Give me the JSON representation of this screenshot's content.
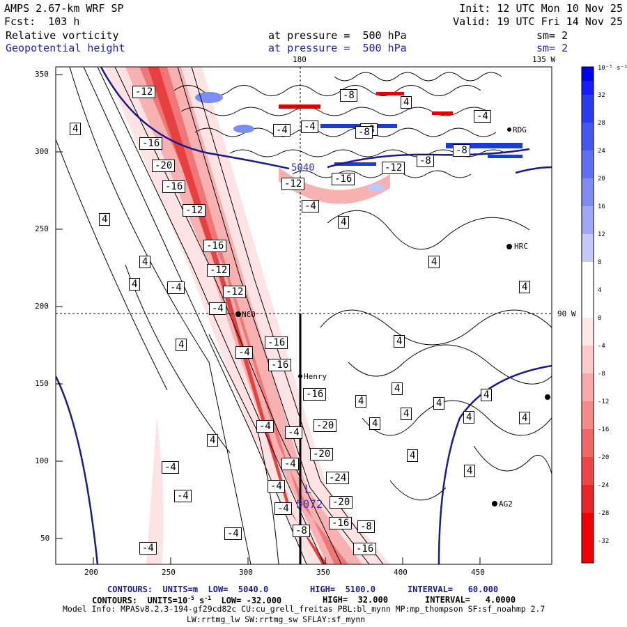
{
  "header": {
    "model": "AMPS 2.67-km WRF SP",
    "forecast": "Fcst:  103 h",
    "field1": "Relative vorticity",
    "field2": "Geopotential height",
    "pressure1": "at pressure =  500 hPa",
    "pressure2": "at pressure =  500 hPa",
    "init": "Init: 12 UTC Mon 10 Nov 25",
    "valid": "Valid: 19 UTC Fri 14 Nov 25",
    "sm1": "sm= 2",
    "sm2": "sm= 2"
  },
  "map_labels": {
    "lon_180": "180",
    "lon_135w": "135 W",
    "lon_90w": "90 W"
  },
  "axes": {
    "x_ticks": [
      "200",
      "250",
      "300",
      "350",
      "400",
      "450"
    ],
    "y_ticks": [
      "50",
      "100",
      "150",
      "200",
      "250",
      "300",
      "350"
    ]
  },
  "stations": [
    {
      "name": "HRC"
    },
    {
      "name": "NCO"
    },
    {
      "name": "Henry"
    },
    {
      "name": "AG2"
    },
    {
      "name": "RDG"
    }
  ],
  "low_center": {
    "letter": "L",
    "value": "5072"
  },
  "height_label": "5040",
  "vort_labels": [
    "-12",
    "-16",
    "-20",
    "-16",
    "-12",
    "-16",
    "-12",
    "-12",
    "-16",
    "-16",
    "-16",
    "-20",
    "-20",
    "-24",
    "-20",
    "-16",
    "-8",
    "-16",
    "-12",
    "-8",
    "-4",
    "-8",
    "-4",
    "-8",
    "-4",
    "-12",
    "-16",
    "-4",
    "-4",
    "-4",
    "-4",
    "-4",
    "-4",
    "-4",
    "-4",
    "-4",
    "-4",
    "-4",
    "-4",
    "-8",
    "-8",
    "-8",
    "-4",
    "4",
    "4",
    "4",
    "4",
    "4",
    "4",
    "4",
    "4",
    "4",
    "4",
    "4",
    "4",
    "4",
    "4",
    "4",
    "4",
    "4",
    "4",
    "4",
    "4",
    "4"
  ],
  "colorbar": {
    "units": "10⁻⁵ s⁻¹",
    "labels": [
      "32",
      "28",
      "24",
      "20",
      "16",
      "12",
      "8",
      "4",
      "0",
      "-4",
      "-8",
      "-12",
      "-16",
      "-20",
      "-24",
      "-28",
      "-32"
    ]
  },
  "footer": {
    "line1_a": "CONTOURS:  UNITS=m  LOW=  5040.0",
    "line1_b": "HIGH=  5100.0",
    "line1_c": "INTERVAL=   60.000",
    "line2_a": "CONTOURS:  UNITS=10",
    "line2_exp": "-5",
    "line2_b": " s",
    "line2_exp2": "-1",
    "line2_c": "  LOW= -32.000",
    "line2_d": "HIGH=  32.000",
    "line2_e": "INTERVAL=   4.0000",
    "model_info": "Model Info: MPASv8.2.3-194-gf29cd82c CU:cu_grell_freitas PBL:bl_mynn MP:mp_thompson SF:sf_noahmp 2.7",
    "model_info2": "LW:rrtmg_lw SW:rrtmg_sw SFLAY:sf_mynn"
  }
}
